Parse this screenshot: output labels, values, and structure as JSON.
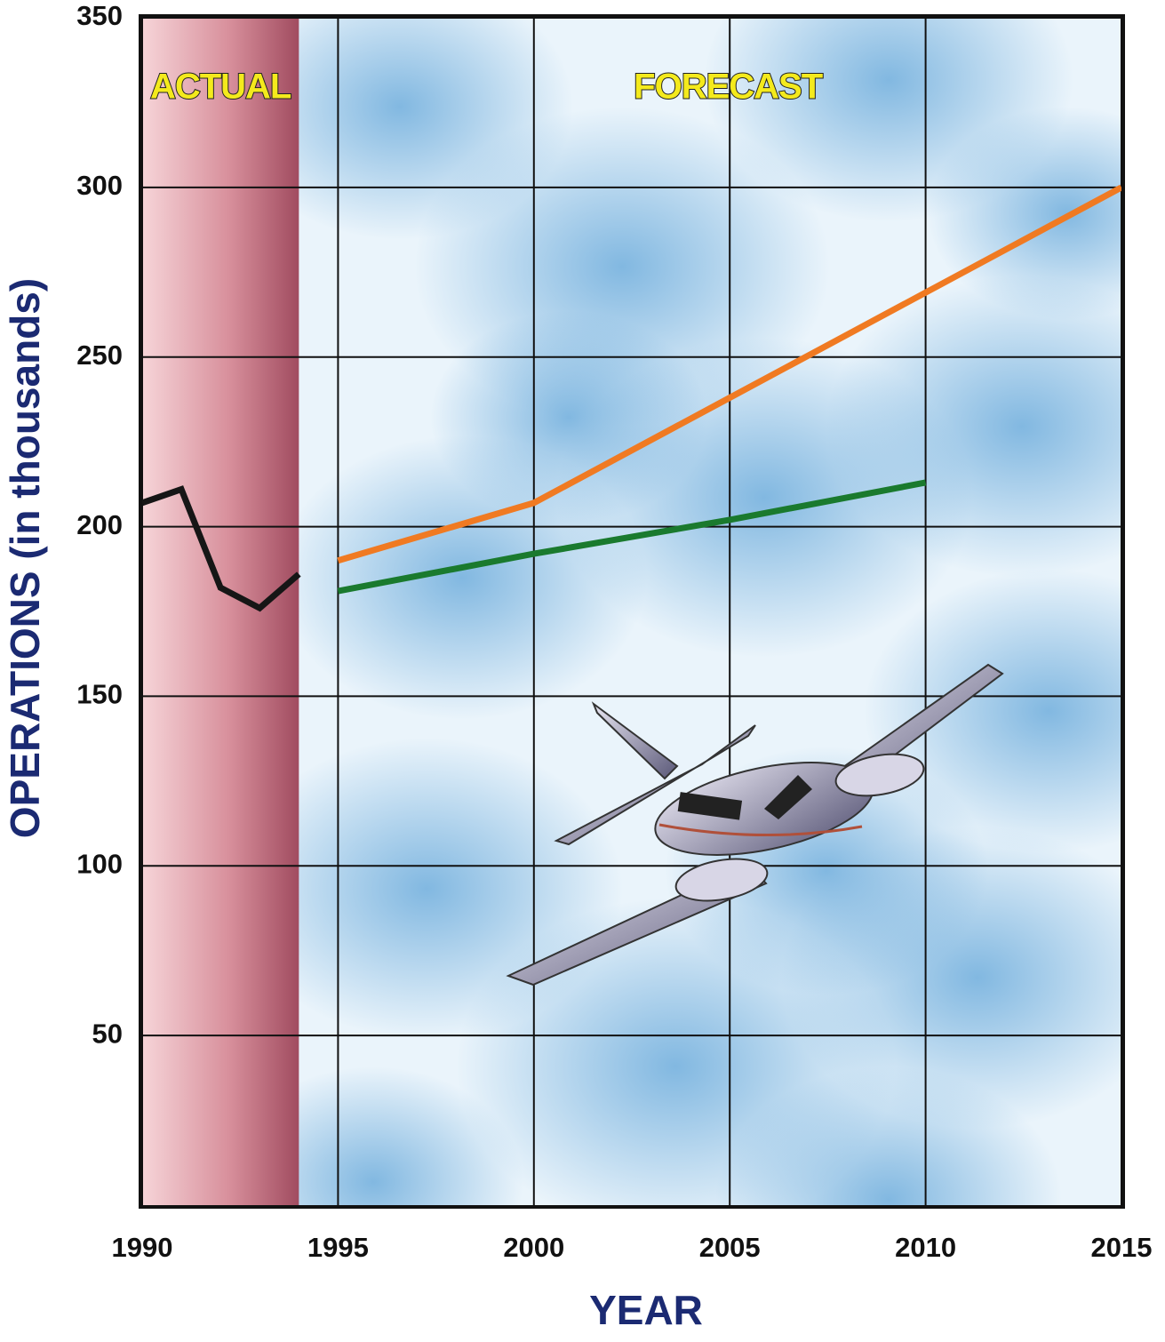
{
  "chart_data": {
    "type": "line",
    "x_label": "YEAR",
    "y_label": "OPERATIONS (in thousands)",
    "annotations": [
      "ACTUAL",
      "FORECAST"
    ],
    "x": [
      1990,
      1991,
      1992,
      1993,
      1994,
      1995,
      2000,
      2005,
      2010,
      2015
    ],
    "series": [
      {
        "color": "#161616",
        "values": [
          207,
          211,
          182,
          176,
          186,
          null,
          null,
          null,
          null,
          null
        ]
      },
      {
        "color": "#f07a22",
        "values": [
          null,
          null,
          null,
          null,
          null,
          190,
          207,
          238,
          269,
          300
        ]
      },
      {
        "color": "#1a7a2e",
        "values": [
          null,
          null,
          null,
          null,
          null,
          181,
          192,
          202,
          213,
          null
        ]
      }
    ],
    "xlim": [
      1990,
      2015
    ],
    "xticks": [
      1990,
      1995,
      2000,
      2005,
      2010,
      2015
    ],
    "ylim": [
      0,
      350
    ],
    "yticks": [
      50,
      100,
      150,
      200,
      250,
      300,
      350
    ],
    "grid": true
  }
}
